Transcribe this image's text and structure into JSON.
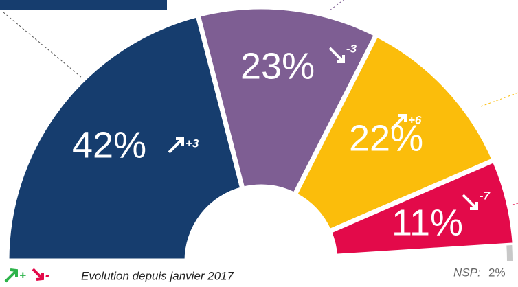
{
  "chart_data": {
    "type": "pie",
    "categories": [
      null,
      null,
      null,
      null,
      "NSP:"
    ],
    "values": [
      42,
      23,
      22,
      11,
      2
    ],
    "value_labels": [
      "42%",
      "23%",
      "22%",
      "11%",
      "2%"
    ],
    "colors": [
      "#163d6e",
      "#7e5e93",
      "#fbbd0b",
      "#e30a4a",
      "#c8c8c8"
    ],
    "evolution": [
      3,
      -3,
      6,
      -7
    ],
    "evolution_labels": [
      "+3",
      "-3",
      "+6",
      "-7"
    ],
    "legend": {
      "up": "+",
      "down": "-",
      "text": "Evolution depuis janvier 2017"
    }
  }
}
